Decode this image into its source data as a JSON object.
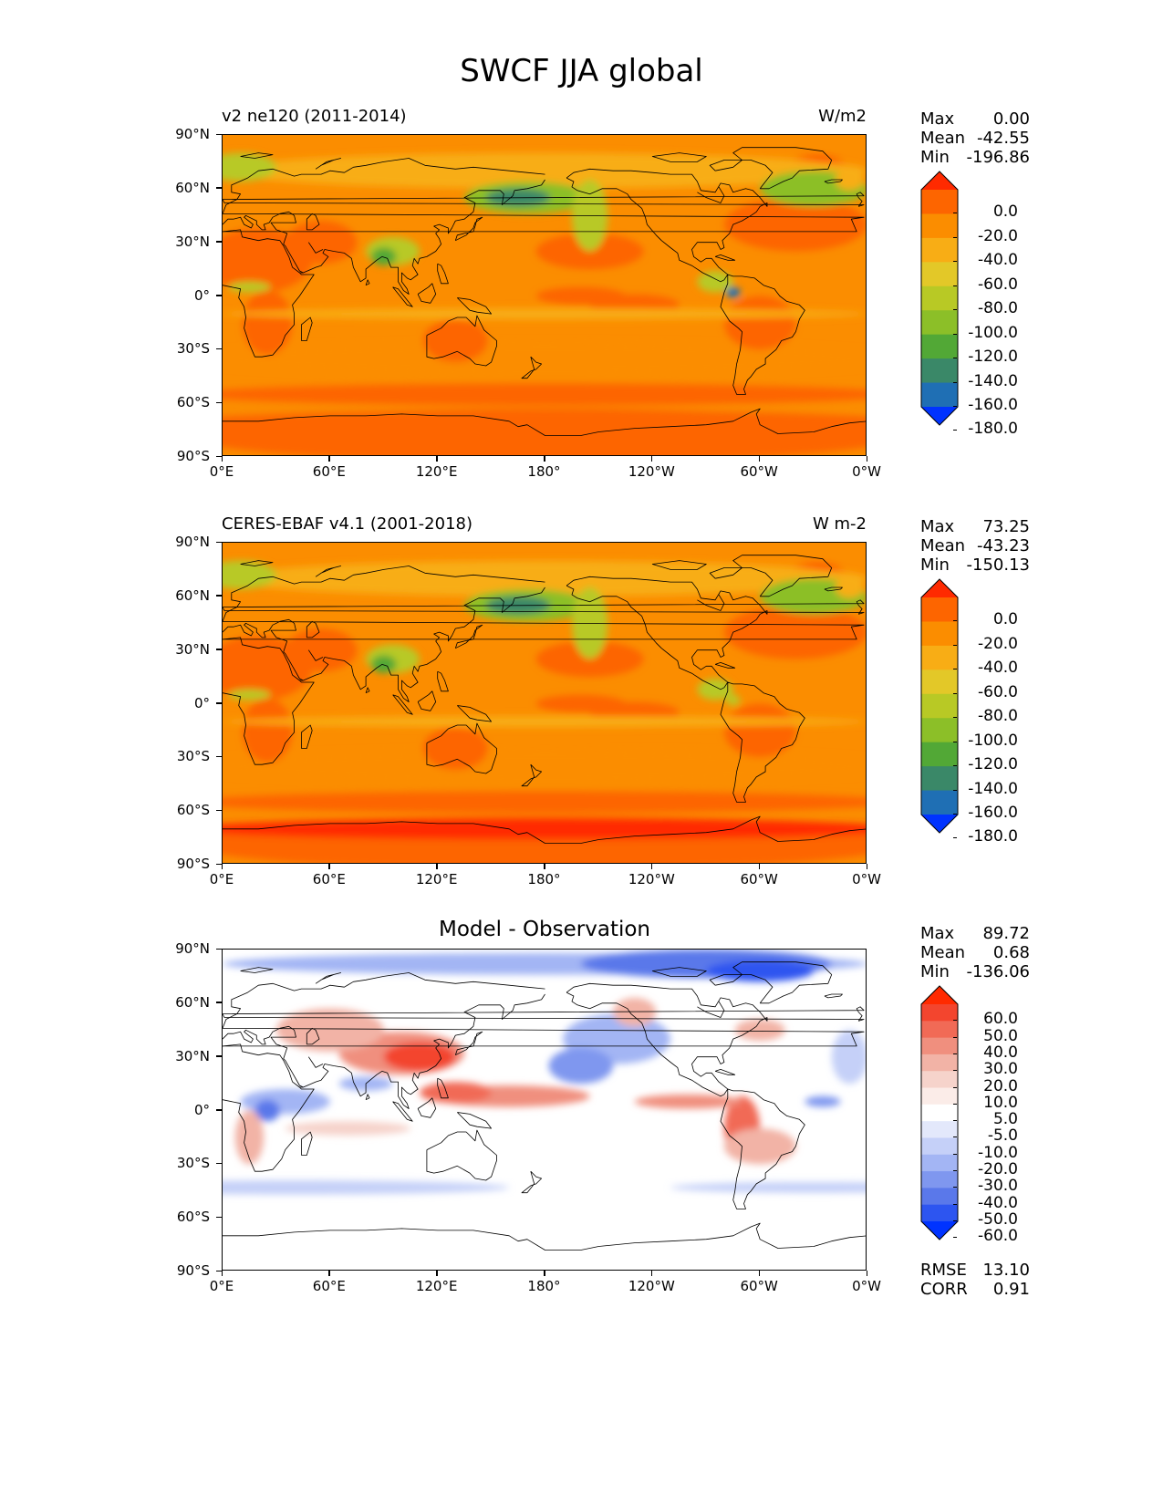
{
  "figure": {
    "title": "SWCF JJA global"
  },
  "panels": [
    {
      "id": "model",
      "left_title": "v2 ne120 (2011-2014)",
      "right_title": "W/m2",
      "center_title": "",
      "stats": {
        "max_label": "Max",
        "max": "0.00",
        "mean_label": "Mean",
        "mean": "-42.55",
        "min_label": "Min",
        "min": "-196.86"
      },
      "colorbar": {
        "labels": [
          "0.0",
          "-20.0",
          "-40.0",
          "-60.0",
          "-80.0",
          "-100.0",
          "-120.0",
          "-140.0",
          "-160.0",
          "-180.0"
        ],
        "colors": [
          "#ff2a00",
          "#fd6500",
          "#fb8d00",
          "#f8ad15",
          "#e3c828",
          "#b8c925",
          "#8cbf28",
          "#52a836",
          "#3a8868",
          "#1f6fb4",
          "#0033ff"
        ]
      }
    },
    {
      "id": "obs",
      "left_title": "CERES-EBAF v4.1 (2001-2018)",
      "right_title": "W m-2",
      "center_title": "",
      "stats": {
        "max_label": "Max",
        "max": "73.25",
        "mean_label": "Mean",
        "mean": "-43.23",
        "min_label": "Min",
        "min": "-150.13"
      },
      "colorbar": {
        "labels": [
          "0.0",
          "-20.0",
          "-40.0",
          "-60.0",
          "-80.0",
          "-100.0",
          "-120.0",
          "-140.0",
          "-160.0",
          "-180.0"
        ],
        "colors": [
          "#ff2a00",
          "#fd6500",
          "#fb8d00",
          "#f8ad15",
          "#e3c828",
          "#b8c925",
          "#8cbf28",
          "#52a836",
          "#3a8868",
          "#1f6fb4",
          "#0033ff"
        ]
      }
    },
    {
      "id": "diff",
      "left_title": "",
      "right_title": "",
      "center_title": "Model - Observation",
      "stats": {
        "max_label": "Max",
        "max": "89.72",
        "mean_label": "Mean",
        "mean": "0.68",
        "min_label": "Min",
        "min": "-136.06"
      },
      "extra_stats": {
        "rmse_label": "RMSE",
        "rmse": "13.10",
        "corr_label": "CORR",
        "corr": "0.91"
      },
      "colorbar": {
        "labels": [
          "60.0",
          "50.0",
          "40.0",
          "30.0",
          "20.0",
          "10.0",
          "5.0",
          "-5.0",
          "-10.0",
          "-20.0",
          "-30.0",
          "-40.0",
          "-50.0",
          "-60.0"
        ],
        "colors": [
          "#ff2a00",
          "#f3452e",
          "#f16a56",
          "#f08f7e",
          "#f2b3a6",
          "#f6d3cb",
          "#fbece8",
          "#ffffff",
          "#e3e8fb",
          "#c5d0f8",
          "#a3b5f4",
          "#7f97ef",
          "#5a78ea",
          "#2d55f0",
          "#0033ff"
        ]
      }
    }
  ],
  "axes": {
    "yticks": [
      "90°N",
      "60°N",
      "30°N",
      "0°",
      "30°S",
      "60°S",
      "90°S"
    ],
    "xticks": [
      "0°E",
      "60°E",
      "120°E",
      "180°",
      "120°W",
      "60°W",
      "0°W"
    ]
  },
  "chart_data": [
    {
      "type": "heatmap",
      "title": "v2 ne120 (2011-2014)",
      "units": "W/m2",
      "x_range_lon": [
        0,
        360
      ],
      "y_range_lat": [
        -90,
        90
      ],
      "levels": [
        -180,
        -160,
        -140,
        -120,
        -100,
        -80,
        -60,
        -40,
        -20,
        0
      ],
      "statistics": {
        "max": 0.0,
        "mean": -42.55,
        "min": -196.86
      }
    },
    {
      "type": "heatmap",
      "title": "CERES-EBAF v4.1 (2001-2018)",
      "units": "W m-2",
      "x_range_lon": [
        0,
        360
      ],
      "y_range_lat": [
        -90,
        90
      ],
      "levels": [
        -180,
        -160,
        -140,
        -120,
        -100,
        -80,
        -60,
        -40,
        -20,
        0
      ],
      "statistics": {
        "max": 73.25,
        "mean": -43.23,
        "min": -150.13
      }
    },
    {
      "type": "heatmap",
      "title": "Model - Observation",
      "x_range_lon": [
        0,
        360
      ],
      "y_range_lat": [
        -90,
        90
      ],
      "levels": [
        -60,
        -50,
        -40,
        -30,
        -20,
        -10,
        -5,
        5,
        10,
        20,
        30,
        40,
        50,
        60
      ],
      "statistics": {
        "max": 89.72,
        "mean": 0.68,
        "min": -136.06,
        "rmse": 13.1,
        "corr": 0.91
      }
    }
  ]
}
